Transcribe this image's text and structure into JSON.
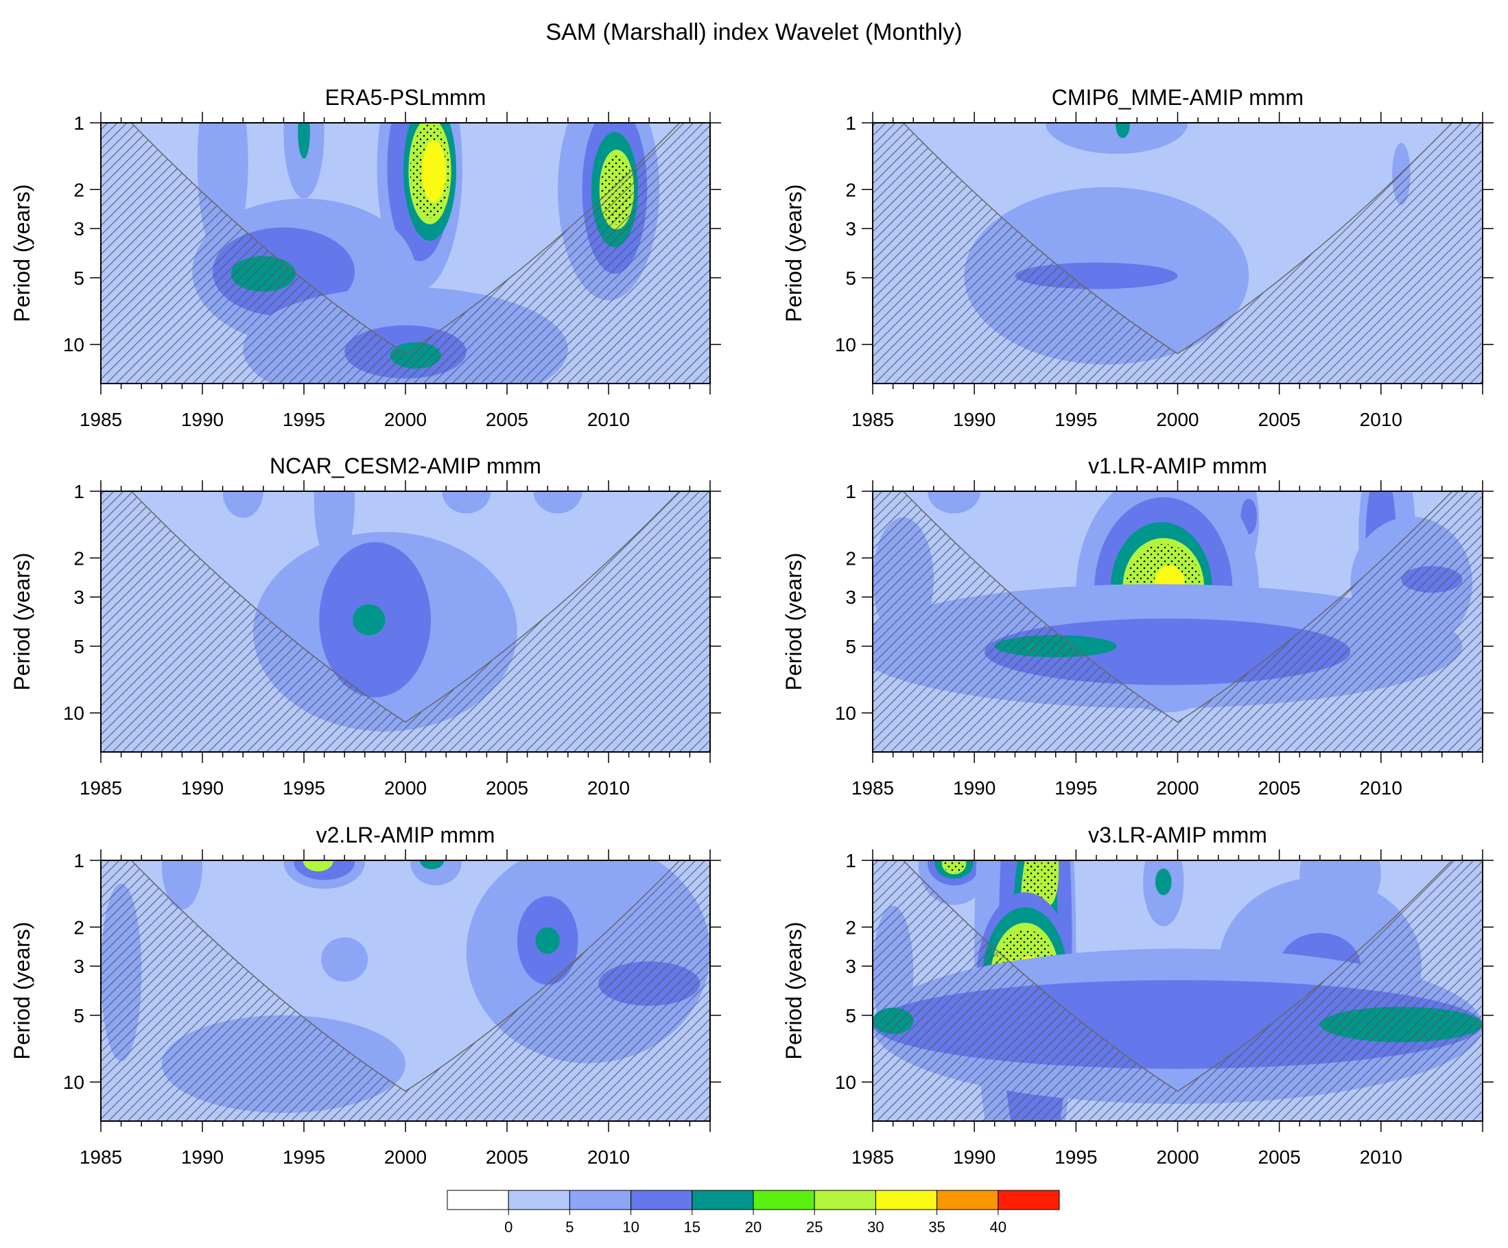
{
  "figure": {
    "title": "SAM (Marshall) index Wavelet (Monthly)"
  },
  "colors": {
    "levels": [
      "#ffffff",
      "#b4c8fa",
      "#8ca5f5",
      "#6478eb",
      "#00968c",
      "#5af00f",
      "#b4f53c",
      "#fafa14",
      "#fa9600",
      "#ff1e00"
    ],
    "hatch": "#555555",
    "coi_line": "#666666",
    "stipple": "#000000"
  },
  "colorbar": {
    "tick_labels": [
      "0",
      "5",
      "10",
      "15",
      "20",
      "25",
      "30",
      "35",
      "40"
    ]
  },
  "chart_data": [
    {
      "type": "heatmap",
      "title": "ERA5-PSLmmm",
      "xlabel": "",
      "ylabel": "Period (years)",
      "xlim": [
        1985,
        2015
      ],
      "x_ticks": [
        "1985",
        "1990",
        "1995",
        "2000",
        "2005",
        "2010"
      ],
      "y_ticks": [
        "1",
        "2",
        "3",
        "5",
        "10"
      ],
      "y_scale": "log",
      "ylim": [
        1,
        15
      ],
      "background_level": 1,
      "coi_apex": {
        "year": 2000,
        "period": 11
      },
      "features": [
        {
          "year": 1991,
          "period": 1.5,
          "w": 2.5,
          "h": 0.45,
          "level": 2
        },
        {
          "year": 1995,
          "period": 1.1,
          "w": 2,
          "h": 0.3,
          "level": 2
        },
        {
          "year": 1995,
          "period": 1.1,
          "w": 0.6,
          "h": 0.12,
          "level": 4
        },
        {
          "year": 2000.7,
          "period": 1.6,
          "w": 4.2,
          "h": 0.55,
          "level": 2
        },
        {
          "year": 2000.7,
          "period": 1.6,
          "w": 3.2,
          "h": 0.42,
          "level": 3
        },
        {
          "year": 2001.2,
          "period": 1.63,
          "w": 2.6,
          "h": 0.32,
          "level": 4
        },
        {
          "year": 2001.2,
          "period": 1.65,
          "w": 2.1,
          "h": 0.24,
          "level": 6,
          "stipple": true
        },
        {
          "year": 2001.4,
          "period": 1.65,
          "w": 1.2,
          "h": 0.14,
          "level": 7
        },
        {
          "year": 2010,
          "period": 2.0,
          "w": 5,
          "h": 0.5,
          "level": 2
        },
        {
          "year": 2010.3,
          "period": 2.0,
          "w": 3.2,
          "h": 0.38,
          "level": 3
        },
        {
          "year": 2010.3,
          "period": 2.0,
          "w": 2.3,
          "h": 0.26,
          "level": 4
        },
        {
          "year": 2010.4,
          "period": 2.0,
          "w": 1.7,
          "h": 0.18,
          "level": 6,
          "stipple": true
        },
        {
          "year": 1995,
          "period": 4.7,
          "w": 11,
          "h": 0.33,
          "level": 2
        },
        {
          "year": 1994,
          "period": 4.7,
          "w": 7,
          "h": 0.2,
          "level": 3
        },
        {
          "year": 1993,
          "period": 4.8,
          "w": 3.2,
          "h": 0.08,
          "level": 4
        },
        {
          "year": 2000,
          "period": 10.5,
          "w": 16,
          "h": 0.28,
          "level": 2
        },
        {
          "year": 2000,
          "period": 10.8,
          "w": 6,
          "h": 0.12,
          "level": 3
        },
        {
          "year": 2000.5,
          "period": 11.2,
          "w": 2.5,
          "h": 0.06,
          "level": 4
        }
      ]
    },
    {
      "type": "heatmap",
      "title": "CMIP6_MME-AMIP  mmm",
      "xlabel": "",
      "ylabel": "Period (years)",
      "xlim": [
        1985,
        2015
      ],
      "x_ticks": [
        "1985",
        "1990",
        "1995",
        "2000",
        "2005",
        "2010"
      ],
      "y_ticks": [
        "1",
        "2",
        "3",
        "5",
        "10"
      ],
      "y_scale": "log",
      "ylim": [
        1,
        15
      ],
      "background_level": 1,
      "coi_apex": {
        "year": 2000,
        "period": 11
      },
      "features": [
        {
          "year": 1997,
          "period": 1.0,
          "w": 7,
          "h": 0.14,
          "level": 2
        },
        {
          "year": 1997.3,
          "period": 1.02,
          "w": 0.7,
          "h": 0.06,
          "level": 4
        },
        {
          "year": 2011,
          "period": 1.7,
          "w": 0.9,
          "h": 0.14,
          "level": 2
        },
        {
          "year": 1996.5,
          "period": 4.9,
          "w": 14,
          "h": 0.4,
          "level": 2
        },
        {
          "year": 1996,
          "period": 4.9,
          "w": 8,
          "h": 0.06,
          "level": 3
        }
      ]
    },
    {
      "type": "heatmap",
      "title": "NCAR_CESM2-AMIP  mmm",
      "xlabel": "",
      "ylabel": "Period (years)",
      "xlim": [
        1985,
        2015
      ],
      "x_ticks": [
        "1985",
        "1990",
        "1995",
        "2000",
        "2005",
        "2010"
      ],
      "y_ticks": [
        "1",
        "2",
        "3",
        "5",
        "10"
      ],
      "y_scale": "log",
      "ylim": [
        1,
        15
      ],
      "background_level": 1,
      "coi_apex": {
        "year": 2000,
        "period": 11
      },
      "features": [
        {
          "year": 1992,
          "period": 1.0,
          "w": 2,
          "h": 0.12,
          "level": 2
        },
        {
          "year": 1996.5,
          "period": 1.1,
          "w": 2,
          "h": 0.3,
          "level": 2
        },
        {
          "year": 2003,
          "period": 1.0,
          "w": 2.4,
          "h": 0.1,
          "level": 2
        },
        {
          "year": 2007.5,
          "period": 1.0,
          "w": 2.4,
          "h": 0.1,
          "level": 2
        },
        {
          "year": 1999,
          "period": 4.3,
          "w": 13,
          "h": 0.45,
          "level": 2
        },
        {
          "year": 1998.5,
          "period": 3.8,
          "w": 5.5,
          "h": 0.35,
          "level": 3
        },
        {
          "year": 1998.2,
          "period": 3.8,
          "w": 1.6,
          "h": 0.07,
          "level": 4
        }
      ]
    },
    {
      "type": "heatmap",
      "title": "v1.LR-AMIP  mmm",
      "xlabel": "",
      "ylabel": "Period (years)",
      "xlim": [
        1985,
        2015
      ],
      "x_ticks": [
        "1985",
        "1990",
        "1995",
        "2000",
        "2005",
        "2010"
      ],
      "y_ticks": [
        "1",
        "2",
        "3",
        "5",
        "10"
      ],
      "y_scale": "log",
      "ylim": [
        1,
        15
      ],
      "background_level": 1,
      "coi_apex": {
        "year": 2000,
        "period": 11
      },
      "features": [
        {
          "year": 1989,
          "period": 1.0,
          "w": 2.6,
          "h": 0.1,
          "level": 2
        },
        {
          "year": 2002.5,
          "period": 1.35,
          "w": 3,
          "h": 0.3,
          "level": 2
        },
        {
          "year": 2003.5,
          "period": 1.3,
          "w": 0.8,
          "h": 0.08,
          "level": 3
        },
        {
          "year": 2010.3,
          "period": 1.6,
          "w": 2.8,
          "h": 0.45,
          "level": 2
        },
        {
          "year": 2010,
          "period": 1.6,
          "w": 1.5,
          "h": 0.3,
          "level": 3
        },
        {
          "year": 2010,
          "period": 1.55,
          "w": 0.3,
          "h": 0.04,
          "level": 4
        },
        {
          "year": 1986.5,
          "period": 2.5,
          "w": 3,
          "h": 0.28,
          "level": 2
        },
        {
          "year": 1999.5,
          "period": 2.8,
          "w": 9,
          "h": 0.55,
          "level": 2
        },
        {
          "year": 1999.3,
          "period": 2.8,
          "w": 6.8,
          "h": 0.42,
          "level": 3
        },
        {
          "year": 1999.2,
          "period": 2.75,
          "w": 5,
          "h": 0.3,
          "level": 4
        },
        {
          "year": 1999.3,
          "period": 2.7,
          "w": 4,
          "h": 0.22,
          "level": 6,
          "stipple": true
        },
        {
          "year": 1999.6,
          "period": 2.6,
          "w": 1.5,
          "h": 0.08,
          "level": 7
        },
        {
          "year": 2011.5,
          "period": 2.6,
          "w": 6,
          "h": 0.3,
          "level": 2
        },
        {
          "year": 2012.5,
          "period": 2.5,
          "w": 3,
          "h": 0.06,
          "level": 3
        },
        {
          "year": 1999,
          "period": 5.0,
          "w": 30,
          "h": 0.28,
          "level": 2
        },
        {
          "year": 1999.5,
          "period": 5.3,
          "w": 18,
          "h": 0.15,
          "level": 3
        },
        {
          "year": 1994,
          "period": 5.0,
          "w": 6,
          "h": 0.05,
          "level": 4
        }
      ]
    },
    {
      "type": "heatmap",
      "title": "v2.LR-AMIP  mmm",
      "xlabel": "",
      "ylabel": "Period (years)",
      "xlim": [
        1985,
        2015
      ],
      "x_ticks": [
        "1985",
        "1990",
        "1995",
        "2000",
        "2005",
        "2010"
      ],
      "y_ticks": [
        "1",
        "2",
        "3",
        "5",
        "10"
      ],
      "y_scale": "log",
      "ylim": [
        1,
        15
      ],
      "background_level": 1,
      "coi_apex": {
        "year": 2000,
        "period": 11
      },
      "features": [
        {
          "year": 1989,
          "period": 1.05,
          "w": 2,
          "h": 0.2,
          "level": 2
        },
        {
          "year": 1996,
          "period": 1.02,
          "w": 4,
          "h": 0.12,
          "level": 2
        },
        {
          "year": 1996,
          "period": 1.02,
          "w": 3,
          "h": 0.08,
          "level": 3
        },
        {
          "year": 1995.7,
          "period": 1.0,
          "w": 1.5,
          "h": 0.05,
          "level": 6
        },
        {
          "year": 2001.5,
          "period": 1.03,
          "w": 2.5,
          "h": 0.1,
          "level": 2
        },
        {
          "year": 2001.3,
          "period": 1.0,
          "w": 1.2,
          "h": 0.04,
          "level": 4
        },
        {
          "year": 2009,
          "period": 2.6,
          "w": 12,
          "h": 0.5,
          "level": 2
        },
        {
          "year": 2007,
          "period": 2.3,
          "w": 3,
          "h": 0.2,
          "level": 3
        },
        {
          "year": 2007,
          "period": 2.3,
          "w": 1.2,
          "h": 0.06,
          "level": 4
        },
        {
          "year": 2012,
          "period": 3.6,
          "w": 5,
          "h": 0.1,
          "level": 3
        },
        {
          "year": 1986,
          "period": 3.2,
          "w": 2,
          "h": 0.4,
          "level": 2
        },
        {
          "year": 1997,
          "period": 2.8,
          "w": 2.3,
          "h": 0.1,
          "level": 2
        },
        {
          "year": 1994,
          "period": 8.3,
          "w": 12,
          "h": 0.22,
          "level": 2
        }
      ]
    },
    {
      "type": "heatmap",
      "title": "v3.LR-AMIP  mmm",
      "xlabel": "",
      "ylabel": "Period (years)",
      "xlim": [
        1985,
        2015
      ],
      "x_ticks": [
        "1985",
        "1990",
        "1995",
        "2000",
        "2005",
        "2010"
      ],
      "y_ticks": [
        "1",
        "2",
        "3",
        "5",
        "10"
      ],
      "y_scale": "log",
      "ylim": [
        1,
        15
      ],
      "background_level": 1,
      "coi_apex": {
        "year": 2000,
        "period": 11
      },
      "features": [
        {
          "year": 1989,
          "period": 1.05,
          "w": 3.5,
          "h": 0.18,
          "level": 2
        },
        {
          "year": 1989,
          "period": 1.03,
          "w": 2.6,
          "h": 0.1,
          "level": 3
        },
        {
          "year": 1989,
          "period": 1.03,
          "w": 1.9,
          "h": 0.07,
          "level": 4
        },
        {
          "year": 1989,
          "period": 1.03,
          "w": 1.2,
          "h": 0.05,
          "level": 6,
          "stipple": true
        },
        {
          "year": 1999.3,
          "period": 1.25,
          "w": 2,
          "h": 0.2,
          "level": 2
        },
        {
          "year": 1999.3,
          "period": 1.25,
          "w": 0.8,
          "h": 0.06,
          "level": 4
        },
        {
          "year": 2008,
          "period": 1.15,
          "w": 4,
          "h": 0.2,
          "level": 2
        },
        {
          "year": 1992.5,
          "period": 2.4,
          "w": 5,
          "h": 1.3,
          "level": 2
        },
        {
          "year": 1993,
          "period": 2.3,
          "w": 3.6,
          "h": 1.1,
          "level": 3
        },
        {
          "year": 1993,
          "period": 1.9,
          "w": 2.2,
          "h": 0.45,
          "level": 4
        },
        {
          "year": 1993,
          "period": 1.9,
          "w": 1.5,
          "h": 0.38,
          "level": 6,
          "stipple": true
        },
        {
          "year": 1993.7,
          "period": 1.1,
          "w": 0.9,
          "h": 0.16,
          "level": 6,
          "stipple": true
        },
        {
          "year": 1992.5,
          "period": 3.5,
          "w": 4.8,
          "h": 0.4,
          "level": 3
        },
        {
          "year": 1992.5,
          "period": 3.4,
          "w": 4.2,
          "h": 0.32,
          "level": 4
        },
        {
          "year": 1992.5,
          "period": 3.4,
          "w": 3.4,
          "h": 0.25,
          "level": 6,
          "stipple": true
        },
        {
          "year": 1992.7,
          "period": 3.4,
          "w": 1.6,
          "h": 0.1,
          "level": 7
        },
        {
          "year": 2007,
          "period": 3.0,
          "w": 10,
          "h": 0.4,
          "level": 2
        },
        {
          "year": 2007,
          "period": 3.0,
          "w": 4,
          "h": 0.15,
          "level": 3
        },
        {
          "year": 1986,
          "period": 3.2,
          "w": 2,
          "h": 0.3,
          "level": 2
        },
        {
          "year": 2000,
          "period": 5.6,
          "w": 30,
          "h": 0.35,
          "level": 2
        },
        {
          "year": 2000,
          "period": 5.5,
          "w": 30,
          "h": 0.2,
          "level": 3
        },
        {
          "year": 2011,
          "period": 5.5,
          "w": 8,
          "h": 0.08,
          "level": 4
        },
        {
          "year": 1986,
          "period": 5.3,
          "w": 2,
          "h": 0.06,
          "level": 4
        }
      ]
    }
  ]
}
